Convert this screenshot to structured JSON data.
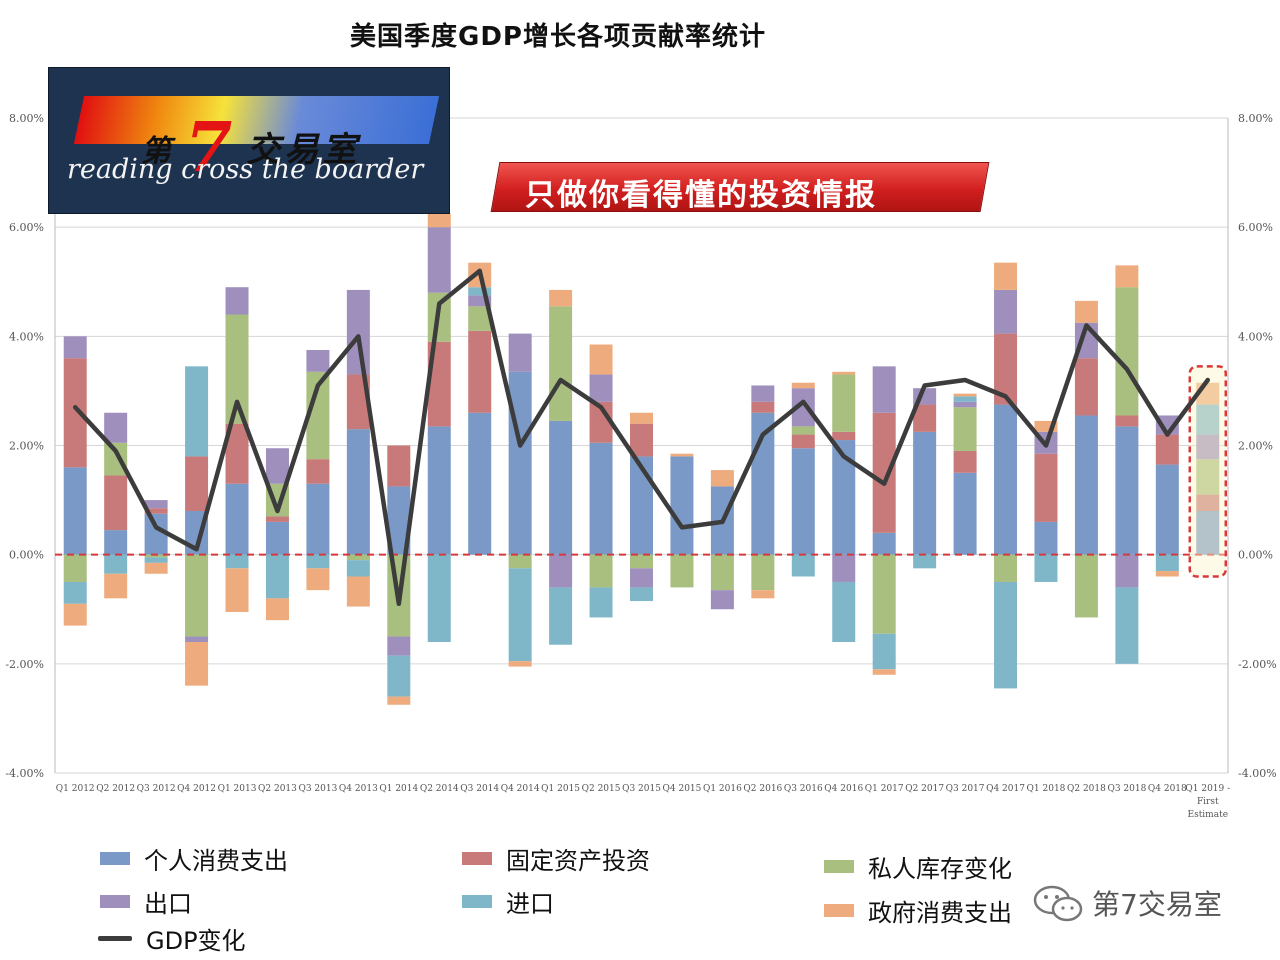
{
  "chart_title": "美国季度GDP增长各项贡献率统计",
  "logo": {
    "cn_prefix": "第",
    "cn_seven": "7",
    "cn_suffix": "交易室",
    "en": "reading cross the boarder"
  },
  "slogan": "只做你看得懂的投资情报",
  "watermark": "第7交易室",
  "colors": {
    "consumption": "#7a99c7",
    "investment": "#c87a7a",
    "inventory": "#a9bf7f",
    "export": "#9f8fbd",
    "import": "#7fb7c9",
    "government": "#eeac7e",
    "gdp_line": "#3c3c3c",
    "zero_line": "#d9383a",
    "highlight": "#d9383a"
  },
  "chart_data": {
    "type": "bar",
    "stacked": true,
    "title": "美国季度GDP增长各项贡献率统计",
    "xlabel": "",
    "ylabel": "",
    "ylim": [
      -4,
      8
    ],
    "y_ticks": [
      "-4.00%",
      "-2.00%",
      "0.00%",
      "2.00%",
      "4.00%",
      "6.00%",
      "8.00%"
    ],
    "y_tick_values": [
      -4,
      -2,
      0,
      2,
      4,
      6,
      8
    ],
    "grid": true,
    "legend_position": "bottom",
    "categories": [
      "Q1 2012",
      "Q2 2012",
      "Q3 2012",
      "Q4 2012",
      "Q1 2013",
      "Q2 2013",
      "Q3 2013",
      "Q4 2013",
      "Q1 2014",
      "Q2 2014",
      "Q3 2014",
      "Q4 2014",
      "Q1 2015",
      "Q2 2015",
      "Q3 2015",
      "Q4 2015",
      "Q1 2016",
      "Q2 2016",
      "Q3 2016",
      "Q4 2016",
      "Q1 2017",
      "Q2 2017",
      "Q3 2017",
      "Q4 2017",
      "Q1 2018",
      "Q2 2018",
      "Q3 2018",
      "Q4 2018",
      "Q1 2019 - First Estimate"
    ],
    "last_category_lines": [
      "Q1 2019 -",
      "First",
      "Estimate"
    ],
    "highlight_category": "Q1 2019 - First Estimate",
    "series": [
      {
        "name": "个人消费支出",
        "key": "consumption",
        "values": [
          1.6,
          0.45,
          0.75,
          0.8,
          1.3,
          0.6,
          1.3,
          2.3,
          1.25,
          2.35,
          2.6,
          3.35,
          2.45,
          2.05,
          1.8,
          1.8,
          1.25,
          2.6,
          1.95,
          2.1,
          0.4,
          2.25,
          1.5,
          2.75,
          0.6,
          2.55,
          2.35,
          1.65,
          0.8
        ]
      },
      {
        "name": "固定资产投资",
        "key": "investment",
        "values": [
          2.0,
          1.0,
          0.1,
          1.0,
          1.1,
          0.1,
          0.45,
          1.0,
          0.75,
          1.55,
          1.5,
          0.0,
          0.0,
          0.75,
          0.6,
          0.0,
          0.0,
          0.2,
          0.25,
          0.15,
          2.2,
          0.5,
          0.4,
          1.3,
          1.25,
          1.05,
          0.2,
          0.55,
          0.3
        ]
      },
      {
        "name": "私人库存变化",
        "key": "inventory",
        "values": [
          -0.5,
          0.6,
          -0.05,
          -1.5,
          2.0,
          0.6,
          1.6,
          -0.1,
          -1.5,
          0.9,
          0.45,
          -0.25,
          2.1,
          -0.6,
          -0.25,
          -0.6,
          -0.65,
          -0.65,
          0.15,
          1.05,
          -1.45,
          0.0,
          0.8,
          -0.5,
          0.0,
          -1.15,
          2.35,
          0.0,
          0.65
        ]
      },
      {
        "name": "出口",
        "key": "export",
        "values": [
          0.4,
          0.55,
          0.15,
          -0.1,
          0.5,
          0.65,
          0.4,
          1.55,
          -0.35,
          1.2,
          0.2,
          0.7,
          -0.6,
          0.5,
          -0.35,
          0.0,
          -0.35,
          0.3,
          0.7,
          -0.5,
          0.85,
          0.3,
          0.1,
          0.8,
          0.4,
          0.65,
          -0.6,
          0.35,
          0.45
        ]
      },
      {
        "name": "进口",
        "key": "import",
        "values": [
          -0.4,
          -0.35,
          -0.1,
          1.65,
          -0.25,
          -0.8,
          -0.25,
          -0.3,
          -0.75,
          -1.6,
          0.15,
          -1.7,
          -1.05,
          -0.55,
          -0.25,
          0.0,
          0.0,
          0.0,
          -0.4,
          -1.1,
          -0.65,
          -0.25,
          0.1,
          -1.95,
          -0.5,
          0.0,
          -1.4,
          -0.3,
          0.55
        ]
      },
      {
        "name": "政府消费支出",
        "key": "government",
        "values": [
          -0.4,
          -0.45,
          -0.2,
          -0.8,
          -0.8,
          -0.4,
          -0.4,
          -0.55,
          -0.15,
          0.25,
          0.45,
          -0.1,
          0.3,
          0.55,
          0.2,
          0.05,
          0.3,
          -0.15,
          0.1,
          0.05,
          -0.1,
          0.0,
          0.05,
          0.5,
          0.2,
          0.4,
          0.4,
          -0.1,
          0.4
        ]
      }
    ],
    "line": {
      "name": "GDP变化",
      "values": [
        2.7,
        1.9,
        0.5,
        0.1,
        2.8,
        0.8,
        3.1,
        4.0,
        -0.9,
        4.6,
        5.2,
        2.0,
        3.2,
        2.7,
        1.6,
        0.5,
        0.6,
        2.2,
        2.8,
        1.8,
        1.3,
        3.1,
        3.2,
        2.9,
        2.0,
        4.2,
        3.4,
        2.2,
        3.2
      ]
    },
    "legend": [
      {
        "label": "个人消费支出",
        "key": "consumption"
      },
      {
        "label": "固定资产投资",
        "key": "investment"
      },
      {
        "label": "私人库存变化",
        "key": "inventory"
      },
      {
        "label": "出口",
        "key": "export"
      },
      {
        "label": "进口",
        "key": "import"
      },
      {
        "label": "GDP变化",
        "key": "gdp_line"
      },
      {
        "label": "政府消费支出",
        "key": "government"
      }
    ]
  }
}
